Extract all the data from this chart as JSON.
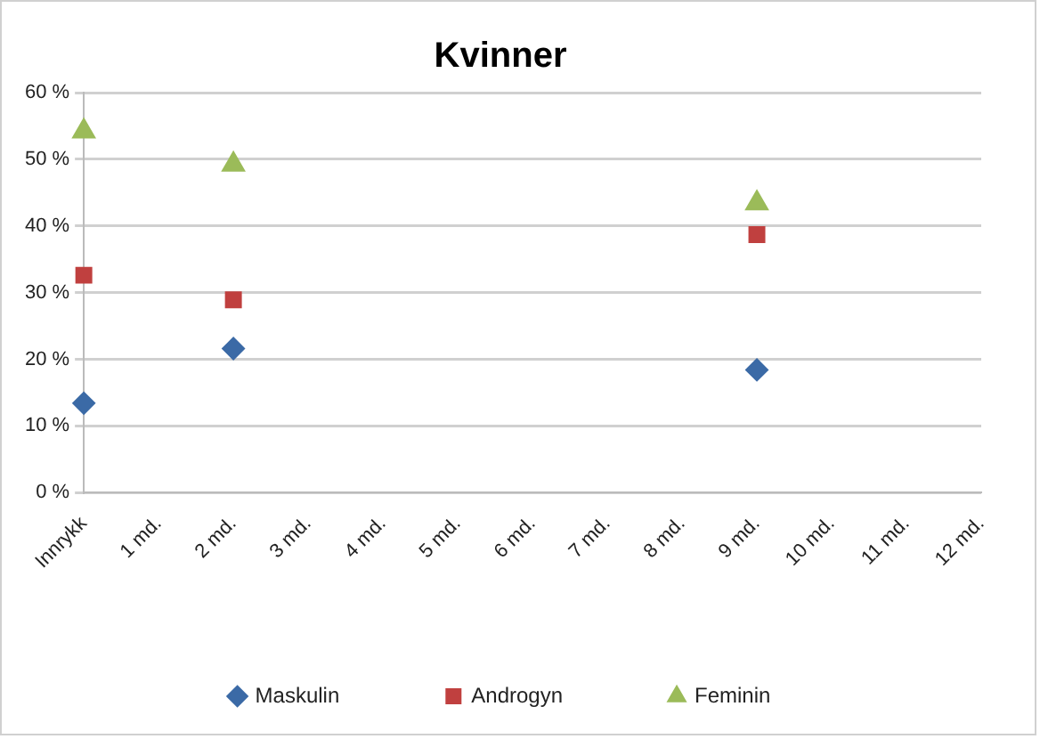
{
  "chart_data": {
    "type": "scatter",
    "title": "Kvinner",
    "series": [
      {
        "name": "Maskulin",
        "color": "#3b6aa6",
        "marker": "diamond",
        "x": [
          0,
          2,
          9
        ],
        "values": [
          13.4,
          21.6,
          18.4
        ]
      },
      {
        "name": "Androgyn",
        "color": "#c0403f",
        "marker": "square",
        "x": [
          0,
          2,
          9
        ],
        "values": [
          32.6,
          28.9,
          38.7
        ]
      },
      {
        "name": "Feminin",
        "color": "#9bbb59",
        "marker": "triangle",
        "x": [
          0,
          2,
          9
        ],
        "values": [
          54.2,
          49.2,
          43.4
        ]
      }
    ],
    "xlim": [
      0,
      12
    ],
    "xticks": [
      {
        "value": 0,
        "label": "Innrykk"
      },
      {
        "value": 1,
        "label": "1 md."
      },
      {
        "value": 2,
        "label": "2 md."
      },
      {
        "value": 3,
        "label": "3 md."
      },
      {
        "value": 4,
        "label": "4 md."
      },
      {
        "value": 5,
        "label": "5 md."
      },
      {
        "value": 6,
        "label": "6 md."
      },
      {
        "value": 7,
        "label": "7 md."
      },
      {
        "value": 8,
        "label": "8 md."
      },
      {
        "value": 9,
        "label": "9 md."
      },
      {
        "value": 10,
        "label": "10 md."
      },
      {
        "value": 11,
        "label": "11 md."
      },
      {
        "value": 12,
        "label": "12 md."
      }
    ],
    "ylim": [
      0,
      60
    ],
    "yticks": [
      {
        "value": 0,
        "label": "0 %"
      },
      {
        "value": 10,
        "label": "10 %"
      },
      {
        "value": 20,
        "label": "20 %"
      },
      {
        "value": 30,
        "label": "30 %"
      },
      {
        "value": 40,
        "label": "40 %"
      },
      {
        "value": 50,
        "label": "50 %"
      },
      {
        "value": 60,
        "label": "60 %"
      }
    ],
    "grid": "y",
    "legend": "bottom"
  }
}
